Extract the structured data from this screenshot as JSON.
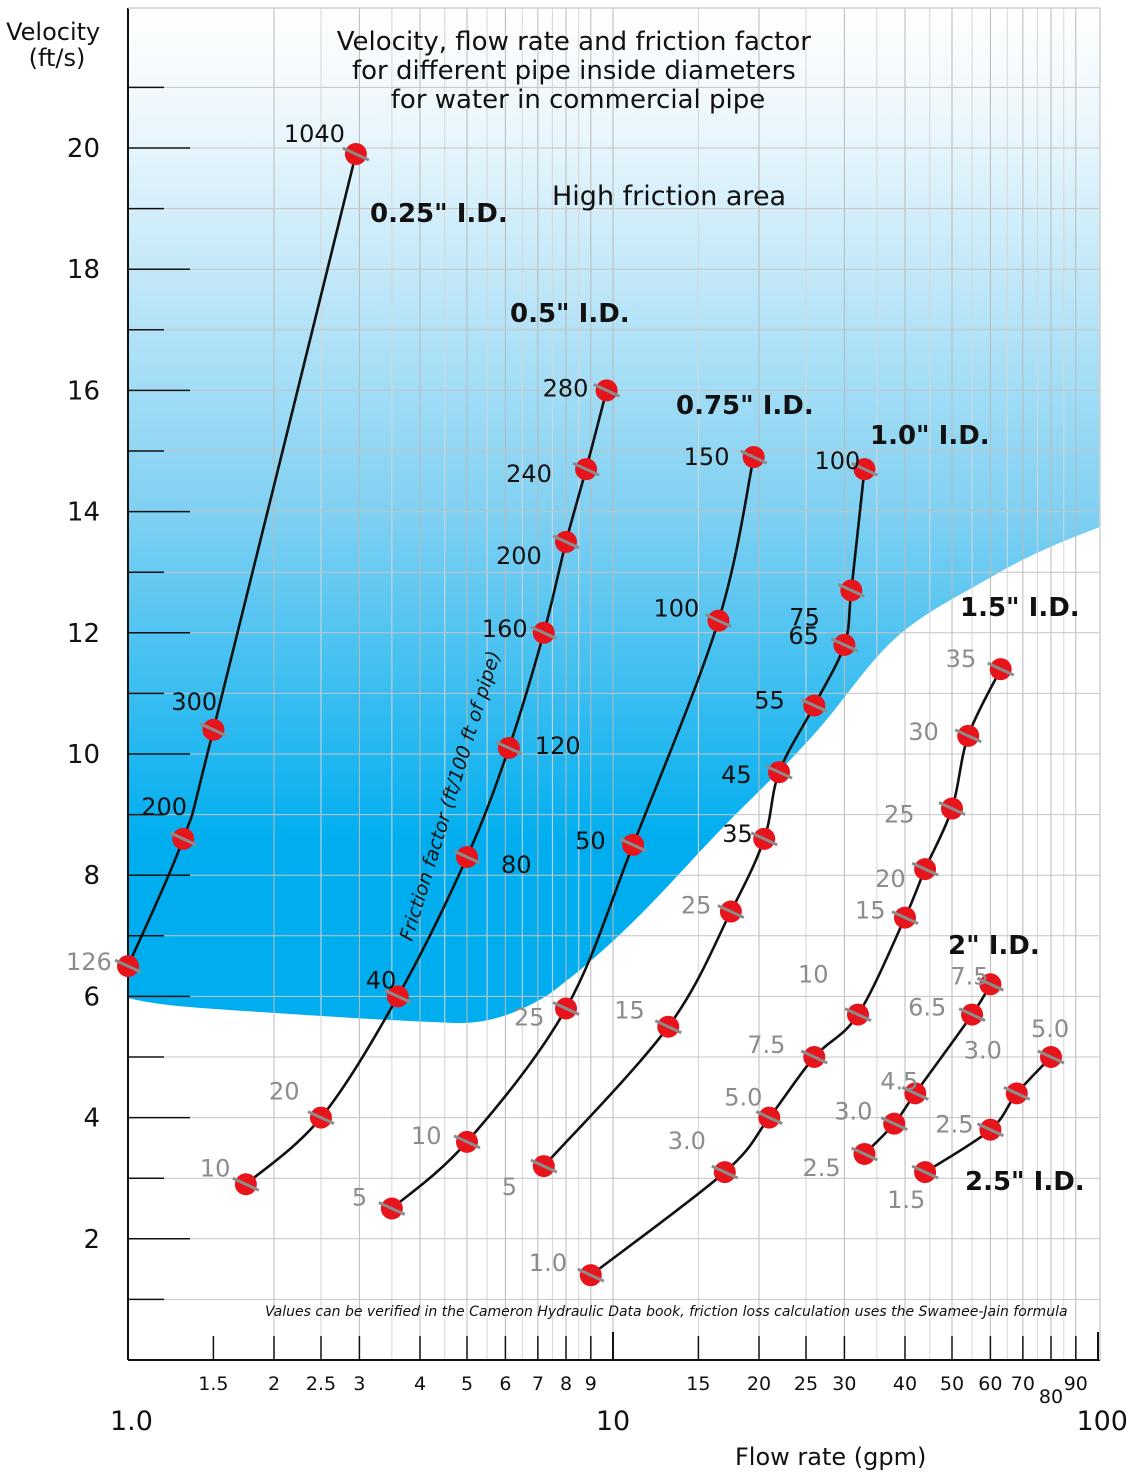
{
  "chart_data": {
    "type": "line",
    "title": "Velocity, flow rate and friction factor\nfor different pipe inside diameters\nfor water in commercial pipe",
    "ylabel": "Velocity\n(ft/s)",
    "xlabel": "Flow rate (gpm)",
    "x_scale": "log",
    "xlim": [
      1.0,
      100
    ],
    "ylim": [
      0,
      22
    ],
    "y_ticks": [
      2,
      4,
      6,
      8,
      10,
      12,
      14,
      16,
      18,
      20
    ],
    "x_ticks_minor": [
      "1.5",
      "2",
      "2.5",
      "3",
      "4",
      "5",
      "6",
      "7",
      "8",
      "9",
      "15",
      "20",
      "25",
      "30",
      "40",
      "50",
      "60",
      "70",
      "80",
      "90"
    ],
    "x_ticks_major": [
      "1.0",
      "10",
      "100"
    ],
    "grid": true,
    "annotations": {
      "high_friction_area": "High friction area",
      "friction_axis_label": "Friction factor (ft/100 ft of pipe)",
      "source_note": "Values can be verified in the Cameron Hydraulic Data book, friction loss calculation uses the Swamee-Jain formula"
    },
    "colors": {
      "marker": "#e8141c",
      "curve": "#111111",
      "high_friction_dark": "#00aeef",
      "high_friction_light": "#ffffff",
      "label_grey": "#8c8c8c"
    },
    "series": [
      {
        "name": "0.25\" I.D.",
        "points": [
          {
            "x": 1.0,
            "y": 6.5,
            "friction": "126",
            "label_color": "grey"
          },
          {
            "x": 1.3,
            "y": 8.6,
            "friction": "200",
            "label_color": "dark"
          },
          {
            "x": 1.5,
            "y": 10.4,
            "friction": "300",
            "label_color": "dark"
          },
          {
            "x": 2.95,
            "y": 19.9,
            "friction": "1040",
            "label_color": "dark"
          }
        ]
      },
      {
        "name": "0.5\" I.D.",
        "points": [
          {
            "x": 1.75,
            "y": 2.9,
            "friction": "10",
            "label_color": "grey"
          },
          {
            "x": 2.5,
            "y": 4.0,
            "friction": "20",
            "label_color": "grey"
          },
          {
            "x": 3.6,
            "y": 6.0,
            "friction": "40",
            "label_color": "dark"
          },
          {
            "x": 5.0,
            "y": 8.3,
            "friction": "80",
            "label_color": "dark"
          },
          {
            "x": 6.1,
            "y": 10.1,
            "friction": "120",
            "label_color": "dark"
          },
          {
            "x": 7.2,
            "y": 12.0,
            "friction": "160",
            "label_color": "dark"
          },
          {
            "x": 8.0,
            "y": 13.5,
            "friction": "200",
            "label_color": "dark"
          },
          {
            "x": 8.8,
            "y": 14.7,
            "friction": "240",
            "label_color": "dark"
          },
          {
            "x": 9.7,
            "y": 16.0,
            "friction": "280",
            "label_color": "dark"
          }
        ]
      },
      {
        "name": "0.75\" I.D.",
        "points": [
          {
            "x": 3.5,
            "y": 2.5,
            "friction": "5",
            "label_color": "grey"
          },
          {
            "x": 5.0,
            "y": 3.6,
            "friction": "10",
            "label_color": "grey"
          },
          {
            "x": 8.0,
            "y": 5.8,
            "friction": "25",
            "label_color": "grey"
          },
          {
            "x": 11.0,
            "y": 8.5,
            "friction": "50",
            "label_color": "dark"
          },
          {
            "x": 16.5,
            "y": 12.2,
            "friction": "100",
            "label_color": "dark"
          },
          {
            "x": 19.5,
            "y": 14.9,
            "friction": "150",
            "label_color": "dark"
          }
        ]
      },
      {
        "name": "1.0\" I.D.",
        "points": [
          {
            "x": 7.2,
            "y": 3.2,
            "friction": "5",
            "label_color": "grey"
          },
          {
            "x": 13.0,
            "y": 5.5,
            "friction": "15",
            "label_color": "grey"
          },
          {
            "x": 17.5,
            "y": 7.4,
            "friction": "25",
            "label_color": "grey"
          },
          {
            "x": 20.5,
            "y": 8.6,
            "friction": "35",
            "label_color": "dark"
          },
          {
            "x": 22.0,
            "y": 9.7,
            "friction": "45",
            "label_color": "dark"
          },
          {
            "x": 26.0,
            "y": 10.8,
            "friction": "55",
            "label_color": "dark"
          },
          {
            "x": 30.0,
            "y": 11.8,
            "friction": "65",
            "label_color": "dark"
          },
          {
            "x": 31.0,
            "y": 12.7,
            "friction": "75",
            "label_color": "dark"
          },
          {
            "x": 33.0,
            "y": 14.7,
            "friction": "100",
            "label_color": "dark"
          }
        ]
      },
      {
        "name": "1.5\" I.D.",
        "points": [
          {
            "x": 9.0,
            "y": 1.4,
            "friction": "1.0",
            "label_color": "grey"
          },
          {
            "x": 17.0,
            "y": 3.1,
            "friction": "3.0",
            "label_color": "grey"
          },
          {
            "x": 21.0,
            "y": 4.0,
            "friction": "5.0",
            "label_color": "grey"
          },
          {
            "x": 26.0,
            "y": 5.0,
            "friction": "7.5",
            "label_color": "grey"
          },
          {
            "x": 32.0,
            "y": 5.7,
            "friction": "10",
            "label_color": "grey"
          },
          {
            "x": 40.0,
            "y": 7.3,
            "friction": "15",
            "label_color": "grey"
          },
          {
            "x": 44.0,
            "y": 8.1,
            "friction": "20",
            "label_color": "grey"
          },
          {
            "x": 50.0,
            "y": 9.1,
            "friction": "25",
            "label_color": "grey"
          },
          {
            "x": 54.0,
            "y": 10.3,
            "friction": "30",
            "label_color": "grey"
          },
          {
            "x": 63.0,
            "y": 11.4,
            "friction": "35",
            "label_color": "grey"
          }
        ]
      },
      {
        "name": "2\" I.D.",
        "points": [
          {
            "x": 33.0,
            "y": 3.4,
            "friction": "2.5",
            "label_color": "grey"
          },
          {
            "x": 38.0,
            "y": 3.9,
            "friction": "3.0",
            "label_color": "grey"
          },
          {
            "x": 42.0,
            "y": 4.4,
            "friction": "4.5",
            "label_color": "grey"
          },
          {
            "x": 55.0,
            "y": 5.7,
            "friction": "6.5",
            "label_color": "grey"
          },
          {
            "x": 60.0,
            "y": 6.2,
            "friction": "7.5",
            "label_color": "grey"
          }
        ]
      },
      {
        "name": "2.5\" I.D.",
        "points": [
          {
            "x": 44.0,
            "y": 3.1,
            "friction": "1.5",
            "label_color": "grey"
          },
          {
            "x": 60.0,
            "y": 3.8,
            "friction": "2.5",
            "label_color": "grey"
          },
          {
            "x": 68.0,
            "y": 4.4,
            "friction": "3.0",
            "label_color": "grey"
          },
          {
            "x": 80.0,
            "y": 5.0,
            "friction": "5.0",
            "label_color": "grey"
          }
        ]
      }
    ]
  }
}
